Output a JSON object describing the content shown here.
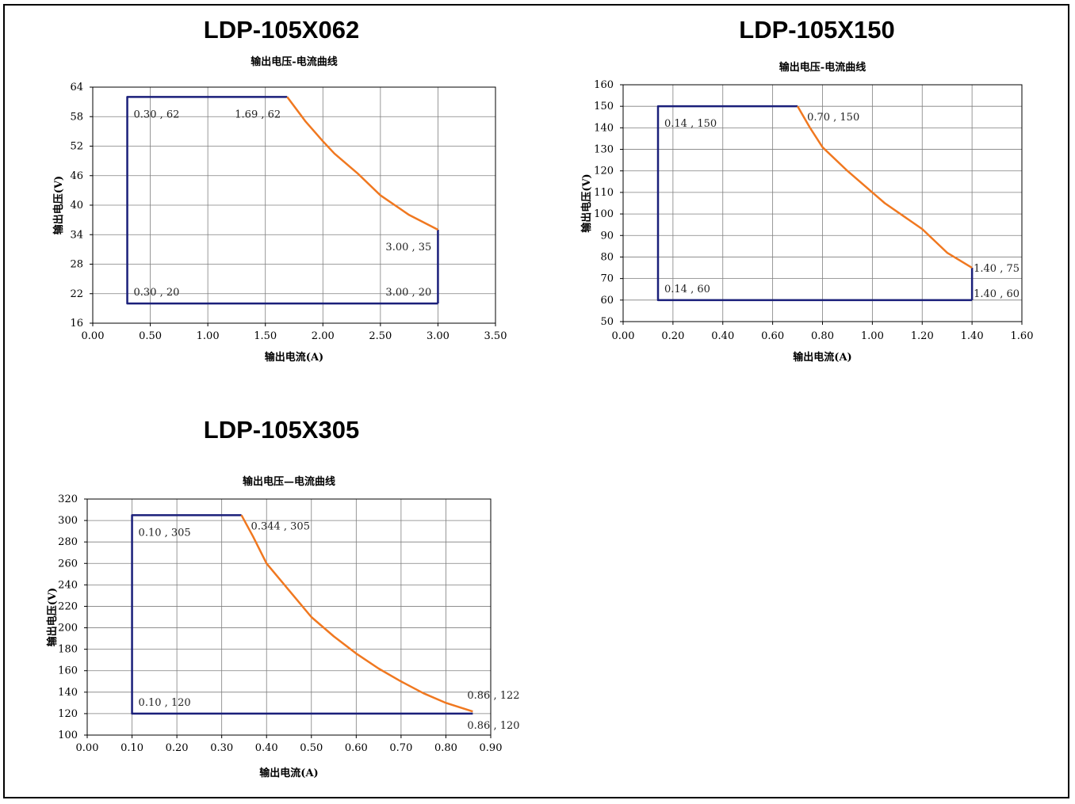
{
  "colors": {
    "envelope": "#1a1f7a",
    "derating": "#f07820",
    "grid": "#7f7f7f"
  },
  "chart_data": [
    {
      "type": "line",
      "panel_title": "LDP-105X062",
      "title": "输出电压-电流曲线",
      "xlabel": "输出电流(A)",
      "ylabel": "输出电压(V)",
      "xlim": [
        0,
        3.5
      ],
      "ylim": [
        16,
        64
      ],
      "x_ticks": [
        0,
        0.5,
        1.0,
        1.5,
        2.0,
        2.5,
        3.0,
        3.5
      ],
      "x_tick_labels": [
        "0.00",
        "0.50",
        "1.00",
        "1.50",
        "2.00",
        "2.50",
        "3.00",
        "3.50"
      ],
      "y_ticks": [
        16,
        22,
        28,
        34,
        40,
        46,
        52,
        58,
        64
      ],
      "y_tick_labels": [
        "16",
        "22",
        "28",
        "34",
        "40",
        "46",
        "52",
        "58",
        "64"
      ],
      "series": [
        {
          "role": "envelope",
          "x": [
            3.0,
            0.3,
            0.3,
            1.69
          ],
          "y": [
            20,
            20,
            62,
            62
          ]
        },
        {
          "role": "envelope-right",
          "x": [
            3.0,
            3.0
          ],
          "y": [
            35,
            20
          ]
        },
        {
          "role": "derating",
          "x": [
            1.69,
            1.85,
            2.0,
            2.1,
            2.3,
            2.5,
            2.75,
            3.0
          ],
          "y": [
            62,
            57,
            53,
            50.5,
            46.5,
            42,
            38,
            35
          ]
        }
      ],
      "annotations": [
        {
          "text": "0.30 , 62",
          "x": 0.3,
          "y": 62,
          "pos": "below-right"
        },
        {
          "text": "1.69 , 62",
          "x": 1.69,
          "y": 62,
          "pos": "below-left"
        },
        {
          "text": "3.00 , 35",
          "x": 3.0,
          "y": 35,
          "pos": "below-left"
        },
        {
          "text": "0.30 , 20",
          "x": 0.3,
          "y": 20,
          "pos": "above-right"
        },
        {
          "text": "3.00 , 20",
          "x": 3.0,
          "y": 20,
          "pos": "above-left"
        }
      ]
    },
    {
      "type": "line",
      "panel_title": "LDP-105X150",
      "title": "输出电压-电流曲线",
      "xlabel": "输出电流(A)",
      "ylabel": "输出电压(V)",
      "xlim": [
        0,
        1.6
      ],
      "ylim": [
        50,
        160
      ],
      "x_ticks": [
        0,
        0.2,
        0.4,
        0.6,
        0.8,
        1.0,
        1.2,
        1.4,
        1.6
      ],
      "x_tick_labels": [
        "0.00",
        "0.20",
        "0.40",
        "0.60",
        "0.80",
        "1.00",
        "1.20",
        "1.40",
        "1.60"
      ],
      "y_ticks": [
        50,
        60,
        70,
        80,
        90,
        100,
        110,
        120,
        130,
        140,
        150,
        160
      ],
      "y_tick_labels": [
        "50",
        "60",
        "70",
        "80",
        "90",
        "100",
        "110",
        "120",
        "130",
        "140",
        "150",
        "160"
      ],
      "series": [
        {
          "role": "envelope",
          "x": [
            1.4,
            0.14,
            0.14,
            0.7
          ],
          "y": [
            60,
            60,
            150,
            150
          ]
        },
        {
          "role": "envelope-right",
          "x": [
            1.4,
            1.4
          ],
          "y": [
            75,
            60
          ]
        },
        {
          "role": "derating",
          "x": [
            0.7,
            0.75,
            0.8,
            0.9,
            1.0,
            1.05,
            1.2,
            1.3,
            1.4
          ],
          "y": [
            150,
            140,
            131,
            120,
            110,
            105,
            93,
            82,
            75
          ]
        }
      ],
      "annotations": [
        {
          "text": "0.14 , 150",
          "x": 0.14,
          "y": 150,
          "pos": "below-right"
        },
        {
          "text": "0.70 , 150",
          "x": 0.7,
          "y": 150,
          "pos": "below-right-near"
        },
        {
          "text": "1.40 , 75",
          "x": 1.4,
          "y": 75,
          "pos": "right"
        },
        {
          "text": "0.14 , 60",
          "x": 0.14,
          "y": 60,
          "pos": "above-right"
        },
        {
          "text": "1.40 , 60",
          "x": 1.4,
          "y": 60,
          "pos": "right-above"
        }
      ]
    },
    {
      "type": "line",
      "panel_title": "LDP-105X305",
      "title": "输出电压—电流曲线",
      "xlabel": "输出电流(A)",
      "ylabel": "输出电压(V)",
      "xlim": [
        0,
        0.9
      ],
      "ylim": [
        100,
        320
      ],
      "x_ticks": [
        0,
        0.1,
        0.2,
        0.3,
        0.4,
        0.5,
        0.6,
        0.7,
        0.8,
        0.9
      ],
      "x_tick_labels": [
        "0.00",
        "0.10",
        "0.20",
        "0.30",
        "0.40",
        "0.50",
        "0.60",
        "0.70",
        "0.80",
        "0.90"
      ],
      "y_ticks": [
        100,
        120,
        140,
        160,
        180,
        200,
        220,
        240,
        260,
        280,
        300,
        320
      ],
      "y_tick_labels": [
        "100",
        "120",
        "140",
        "160",
        "180",
        "200",
        "220",
        "240",
        "260",
        "280",
        "300",
        "320"
      ],
      "series": [
        {
          "role": "envelope",
          "x": [
            0.86,
            0.1,
            0.1,
            0.344
          ],
          "y": [
            120,
            120,
            305,
            305
          ]
        },
        {
          "role": "derating",
          "x": [
            0.344,
            0.37,
            0.4,
            0.45,
            0.5,
            0.55,
            0.6,
            0.65,
            0.7,
            0.75,
            0.8,
            0.86
          ],
          "y": [
            305,
            285,
            260,
            235,
            210,
            192,
            176,
            162,
            150,
            139,
            130,
            122
          ]
        }
      ],
      "annotations": [
        {
          "text": "0.10 , 305",
          "x": 0.1,
          "y": 305,
          "pos": "below-right"
        },
        {
          "text": "0.344 , 305",
          "x": 0.344,
          "y": 305,
          "pos": "below-right-near"
        },
        {
          "text": "0.86 , 122",
          "x": 0.86,
          "y": 122,
          "pos": "above-right-far"
        },
        {
          "text": "0.10 , 120",
          "x": 0.1,
          "y": 120,
          "pos": "above-right"
        },
        {
          "text": "0.86 , 120",
          "x": 0.86,
          "y": 120,
          "pos": "below-right-far"
        }
      ]
    }
  ]
}
